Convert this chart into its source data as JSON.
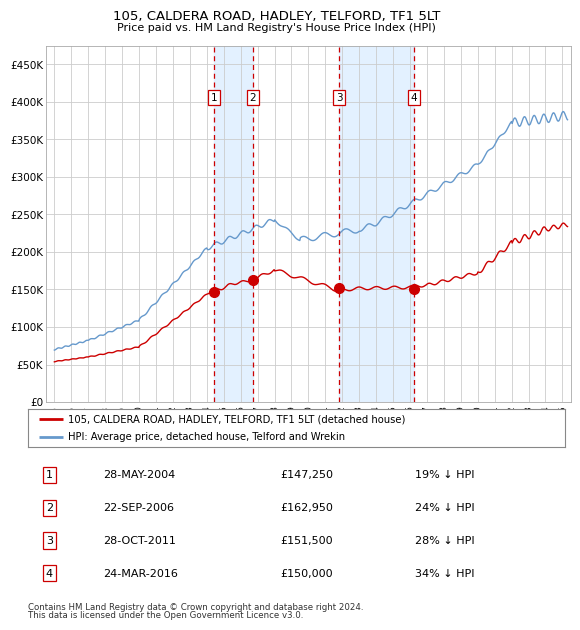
{
  "title": "105, CALDERA ROAD, HADLEY, TELFORD, TF1 5LT",
  "subtitle": "Price paid vs. HM Land Registry's House Price Index (HPI)",
  "xlim": [
    1994.5,
    2025.5
  ],
  "ylim": [
    0,
    475000
  ],
  "yticks": [
    0,
    50000,
    100000,
    150000,
    200000,
    250000,
    300000,
    350000,
    400000,
    450000
  ],
  "ytick_labels": [
    "£0",
    "£50K",
    "£100K",
    "£150K",
    "£200K",
    "£250K",
    "£300K",
    "£350K",
    "£400K",
    "£450K"
  ],
  "xtick_years": [
    1995,
    1996,
    1997,
    1998,
    1999,
    2000,
    2001,
    2002,
    2003,
    2004,
    2005,
    2006,
    2007,
    2008,
    2009,
    2010,
    2011,
    2012,
    2013,
    2014,
    2015,
    2016,
    2017,
    2018,
    2019,
    2020,
    2021,
    2022,
    2023,
    2024,
    2025
  ],
  "sale_color": "#cc0000",
  "hpi_color": "#6699cc",
  "background_color": "#ffffff",
  "grid_color": "#cccccc",
  "transaction_vline_color": "#cc0000",
  "shade_color": "#ddeeff",
  "transactions": [
    {
      "num": 1,
      "date_x": 2004.41,
      "price": 147250,
      "label": "1",
      "vline": 2004.41
    },
    {
      "num": 2,
      "date_x": 2006.72,
      "price": 162950,
      "label": "2",
      "vline": 2006.72
    },
    {
      "num": 3,
      "date_x": 2011.82,
      "price": 151500,
      "label": "3",
      "vline": 2011.82
    },
    {
      "num": 4,
      "date_x": 2016.23,
      "price": 150000,
      "label": "4",
      "vline": 2016.23
    }
  ],
  "table_rows": [
    {
      "num": "1",
      "date": "28-MAY-2004",
      "price": "£147,250",
      "hpi_diff": "19% ↓ HPI"
    },
    {
      "num": "2",
      "date": "22-SEP-2006",
      "price": "£162,950",
      "hpi_diff": "24% ↓ HPI"
    },
    {
      "num": "3",
      "date": "28-OCT-2011",
      "price": "£151,500",
      "hpi_diff": "28% ↓ HPI"
    },
    {
      "num": "4",
      "date": "24-MAR-2016",
      "price": "£150,000",
      "hpi_diff": "34% ↓ HPI"
    }
  ],
  "legend_entry1": "105, CALDERA ROAD, HADLEY, TELFORD, TF1 5LT (detached house)",
  "legend_entry2": "HPI: Average price, detached house, Telford and Wrekin",
  "footer1": "Contains HM Land Registry data © Crown copyright and database right 2024.",
  "footer2": "This data is licensed under the Open Government Licence v3.0."
}
